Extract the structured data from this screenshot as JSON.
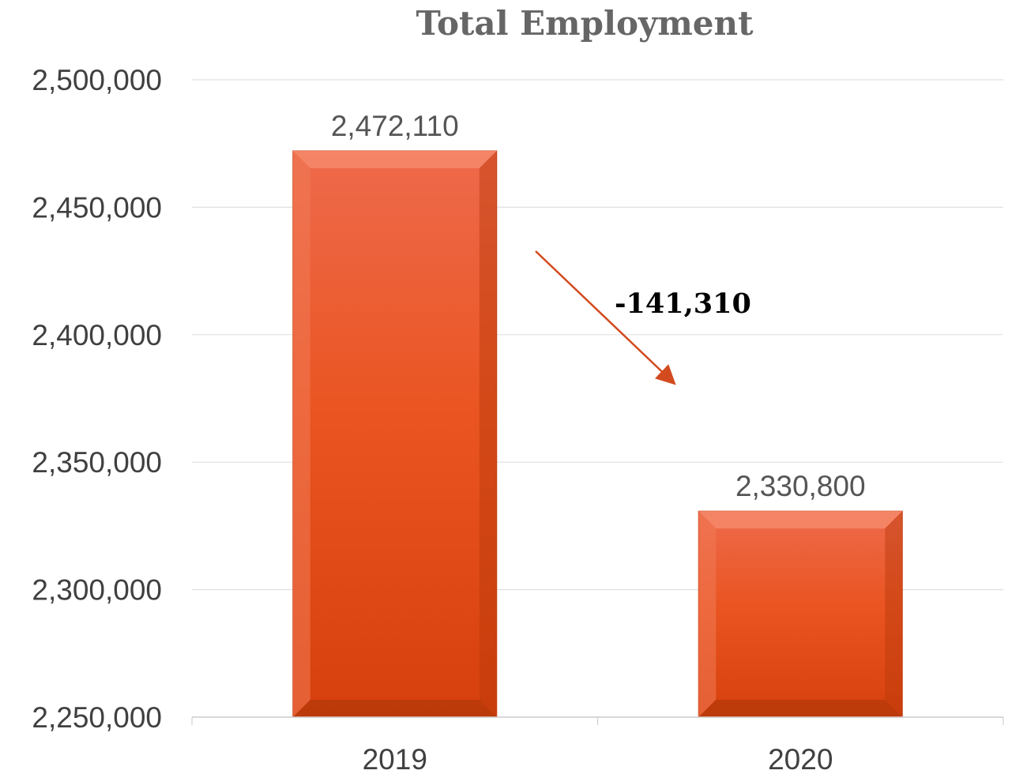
{
  "chart_data": {
    "type": "bar",
    "title": "Total Employment",
    "categories": [
      "2019",
      "2020"
    ],
    "values": [
      2472110,
      2330800
    ],
    "data_labels": [
      "2,472,110",
      "2,330,800"
    ],
    "ylim": [
      2250000,
      2500000
    ],
    "yticks": [
      2250000,
      2300000,
      2350000,
      2400000,
      2450000,
      2500000
    ],
    "ytick_labels": [
      "2,250,000",
      "2,300,000",
      "2,350,000",
      "2,400,000",
      "2,450,000",
      "2,500,000"
    ],
    "grid": true,
    "legend": "none",
    "annotation": {
      "text": "-141,310",
      "arrow": "down-right"
    },
    "colors": {
      "bar": "#E64A19",
      "bar_light": "#F07050",
      "bar_dark": "#B83A10",
      "grid": "#E0E0E0",
      "arrow": "#D24A1E"
    }
  }
}
